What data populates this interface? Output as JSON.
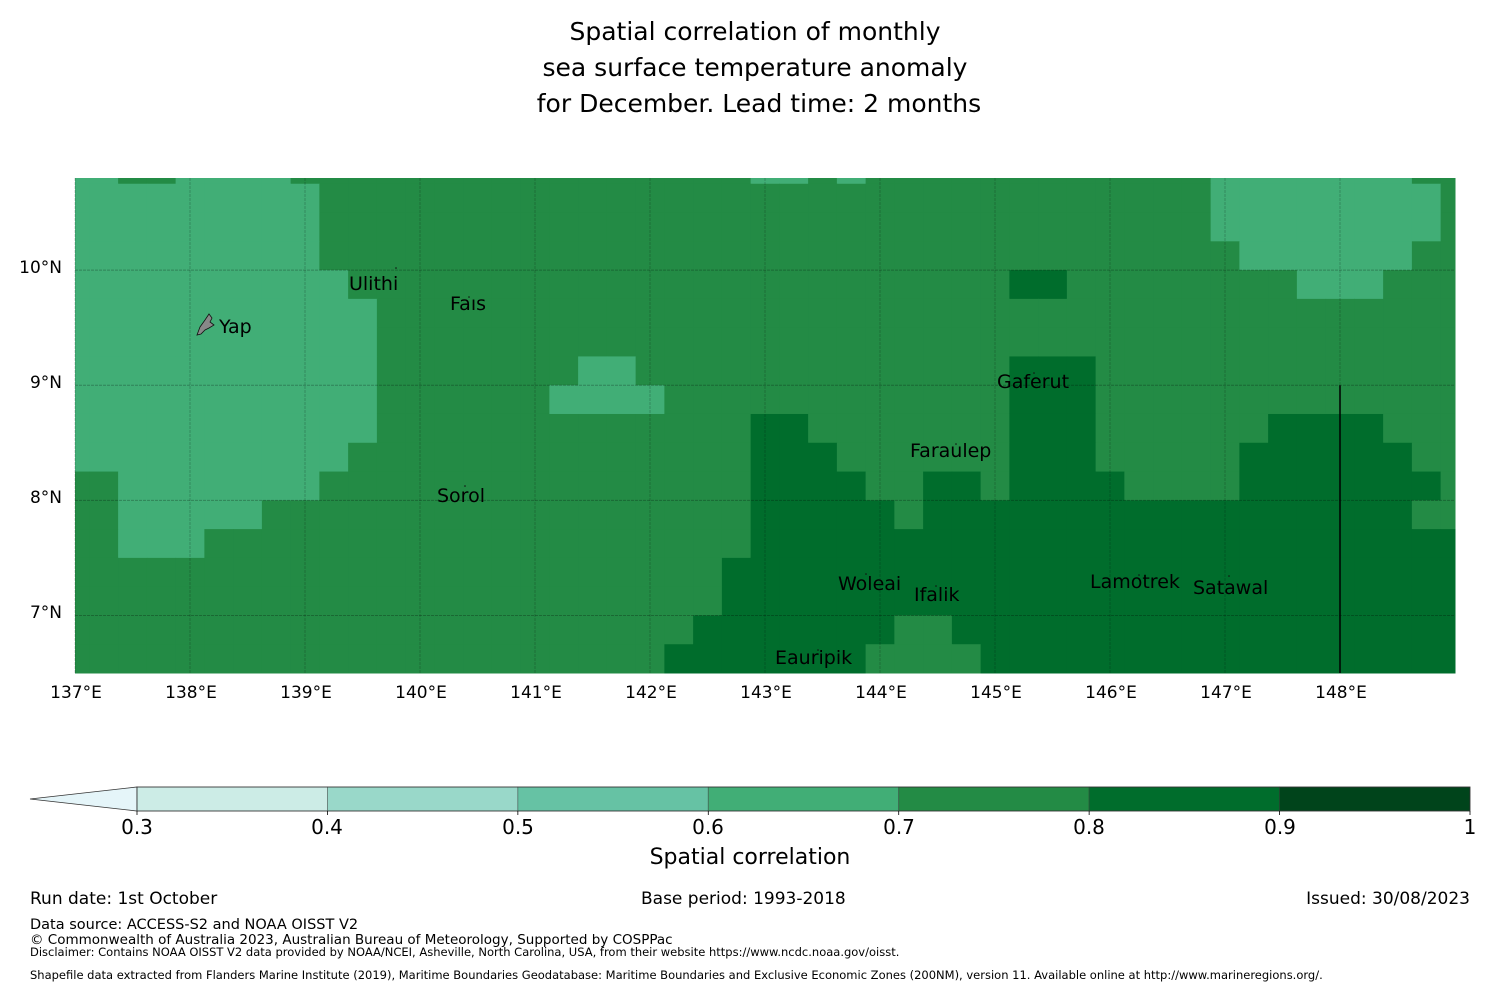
{
  "title": {
    "line1": "Spatial correlation of monthly",
    "line2": "sea surface temperature anomaly",
    "line3": " for December. Lead time: 2 months"
  },
  "chart_data": {
    "type": "heatmap",
    "title": "Spatial correlation of monthly sea surface temperature anomaly for December. Lead time: 2 months",
    "variable": "Spatial correlation",
    "lon_range": [
      137,
      149
    ],
    "lat_range": [
      6.5,
      10.8
    ],
    "cell_size_deg": 0.25,
    "x_ticks": [
      "137°E",
      "138°E",
      "139°E",
      "140°E",
      "141°E",
      "142°E",
      "143°E",
      "144°E",
      "145°E",
      "146°E",
      "147°E",
      "148°E"
    ],
    "x_tick_values": [
      137,
      138,
      139,
      140,
      141,
      142,
      143,
      144,
      145,
      146,
      147,
      148
    ],
    "y_ticks": [
      "10°N",
      "9°N",
      "8°N",
      "7°N"
    ],
    "y_tick_values": [
      10,
      9,
      8,
      7
    ],
    "grid": true,
    "category_legend": {
      "L": "0.6–0.7",
      "M": "0.7–0.8",
      "D": "0.8–0.9"
    },
    "column_edges_lon": [
      137.0,
      137.125,
      137.375,
      137.625,
      137.875,
      138.125,
      138.375,
      138.625,
      138.875,
      139.125,
      139.375,
      139.625,
      139.875,
      140.125,
      140.375,
      140.625,
      140.875,
      141.125,
      141.375,
      141.625,
      141.875,
      142.125,
      142.375,
      142.625,
      142.875,
      143.125,
      143.375,
      143.625,
      143.875,
      144.125,
      144.375,
      144.625,
      144.875,
      145.125,
      145.375,
      145.625,
      145.875,
      146.125,
      146.375,
      146.625,
      146.875,
      147.125,
      147.375,
      147.625,
      147.875,
      148.125,
      148.375,
      148.625,
      148.875,
      149.0
    ],
    "row_edges_lat": [
      10.8,
      10.75,
      10.5,
      10.25,
      10.0,
      9.75,
      9.5,
      9.25,
      9.0,
      8.75,
      8.5,
      8.25,
      8.0,
      7.75,
      7.5,
      7.25,
      7.0,
      6.75,
      6.5
    ],
    "rows": [
      "LLMMLLLLMMMMMMMMMMMMMMMMLLMLMMMMMMMMMMMMLLLLLLLMM",
      "LLLLLLLLLMMMMMMMMMMMMMMMMMMMMMMMMMMMMMMMLLLLLLLLM",
      "LLLLLLLLLMMMMMMMMMMMMMMMMMMMMMMMMMMMMMMMLLLLLLLLM",
      "LLLLLLLLLMMMMMMMMMMMMMMMMMMMMMMMMMMMMMMMMLLLLLLMM",
      "LLLLLLLLLLMMMMMMMMMMMMMMMMMMMMMMMDDMMMMMMMMLLLMMM",
      "LLLLLLLLLLLMMMMMMMMMMMMMMMMMMMMMMMMMMMMMMMMMMMMMM",
      "LLLLLLLLLLLMMMMMMMMMMMMMMMMMMMMMMMMMMMMMMMMMMMMMM",
      "LLLLLLLLLLLMMMMMMMLLMMMMMMMMMMMMMDDDMMMMMMMMMMMMM",
      "LLLLLLLLLLLMMMMMMLLLLMMMMMMMMMMMMDDDMMMMMMMMMMMMM",
      "LLLLLLLLLLLMMMMMMMMMMMMMDDMMMMMMMDDDMMMMMMDDDDMMM",
      "LLLLLLLLLLMMMMMMMMMMMMMMDDDMMMMMMDDDMMMMMDDDDDDMM",
      "MMLLLLLLLMMMMMMMMMMMMMMMDDDDMMDDMDDDDMMMMDDDDDDDM",
      "MMLLLLLMMMMMMMMMMMMMMMMMDDDDDMDDDDDDDDDDDDDDDDDMM",
      "MMLLLMMMMMMMMMMMMMMMMMMMDDDDDDDDDDDDDDDDDDDDDDDDD",
      "MMMMMMMMMMMMMMMMMMMMMMMDDDDDDDDDDDDDDDDDDDDDDDDDD",
      "MMMMMMMMMMMMMMMMMMMMMMMDDDDDDDDDDDDDDDDDDDDDDDDDD",
      "MMMMMMMMMMMMMMMMMMMMMMDDDDDDDMMDDDDDDDDDDDDDDDDDD",
      "MMMMMMMMMMMMMMMMMMMMMDDDDDDDMMMMDDDDDDDDDDDDDDDDD"
    ],
    "places": [
      {
        "name": "Yap",
        "lon": 138.15,
        "lat": 9.5,
        "island": true
      },
      {
        "name": "Ulithi",
        "lon": 139.35,
        "lat": 9.85
      },
      {
        "name": "Fais",
        "lon": 140.25,
        "lat": 9.7
      },
      {
        "name": "Sorol",
        "lon": 140.15,
        "lat": 8.0
      },
      {
        "name": "Gaferut",
        "lon": 145.0,
        "lat": 9.0
      },
      {
        "name": "Faraulep",
        "lon": 144.3,
        "lat": 8.4
      },
      {
        "name": "Woleai",
        "lon": 143.6,
        "lat": 7.25
      },
      {
        "name": "Ifalik",
        "lon": 144.3,
        "lat": 7.15
      },
      {
        "name": "Eauripik",
        "lon": 143.0,
        "lat": 6.6
      },
      {
        "name": "Lamotrek",
        "lon": 145.85,
        "lat": 7.28
      },
      {
        "name": "Satawal",
        "lon": 146.7,
        "lat": 7.2
      }
    ],
    "boundary_line": {
      "lon": 148.0,
      "lat_from": 6.5,
      "lat_to": 9.0
    }
  },
  "map": {
    "x_ticks": [
      "137°E",
      "138°E",
      "139°E",
      "140°E",
      "141°E",
      "142°E",
      "143°E",
      "144°E",
      "145°E",
      "146°E",
      "147°E",
      "148°E"
    ],
    "y_ticks": [
      "10°N",
      "9°N",
      "8°N",
      "7°N"
    ],
    "places": [
      "Yap",
      "Ulithi",
      "Faıs",
      "Sorol",
      "Gaferut",
      "Faraulep",
      "Woleai",
      "Ifalik",
      "Eauripik",
      "Lamotrek",
      "Satawal"
    ]
  },
  "colorbar": {
    "label": "Spatial correlation",
    "ticks": [
      "0.3",
      "0.4",
      "0.5",
      "0.6",
      "0.7",
      "0.8",
      "0.9",
      "1"
    ],
    "bins": [
      {
        "range": "<0.3",
        "color": "#e5f5f9"
      },
      {
        "range": "0.3–0.4",
        "color": "#ccece6"
      },
      {
        "range": "0.4–0.5",
        "color": "#99d8c9"
      },
      {
        "range": "0.5–0.6",
        "color": "#66c2a4"
      },
      {
        "range": "0.6–0.7",
        "color": "#41ae76"
      },
      {
        "range": "0.7–0.8",
        "color": "#238b45"
      },
      {
        "range": "0.8–0.9",
        "color": "#006d2c"
      },
      {
        "range": "0.9–1",
        "color": "#00441b"
      }
    ]
  },
  "colors": {
    "L": "#41ae76",
    "M": "#238b45",
    "D": "#006d2c"
  },
  "footer": {
    "run_date": "Run date: 1st October",
    "base_period": "Base period: 1993-2018",
    "issued": "Issued: 30/08/2023",
    "data_source": "Data source: ACCESS-S2 and NOAA OISST V2",
    "copyright": "© Commonwealth of Australia 2023, Australian Bureau of Meteorology, Supported by COSPPac",
    "disclaimer": "Disclaimer: Contains NOAA OISST V2 data provided by NOAA/NCEI, Asheville, North Carolina, USA, from their website https://www.ncdc.noaa.gov/oisst.",
    "shapefile": "Shapefile data extracted from Flanders Marine Institute (2019), Maritime Boundaries Geodatabase: Maritime Boundaries and Exclusive Economic Zones (200NM), version 11. Available online at http://www.marineregions.org/."
  }
}
